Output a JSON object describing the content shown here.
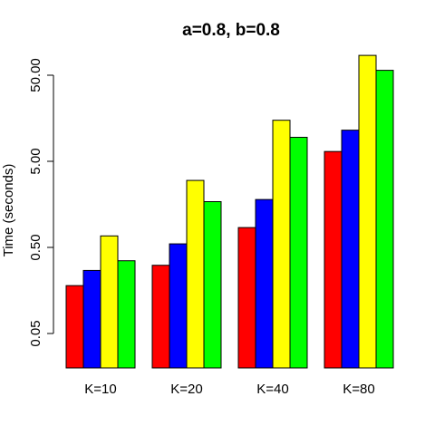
{
  "chart_data": {
    "type": "bar",
    "title": "a=0.8, b=0.8",
    "xlabel": "",
    "ylabel": "Time (seconds)",
    "y_scale": "log",
    "ylim": [
      0.016,
      100
    ],
    "y_ticks": [
      {
        "value": 0.05,
        "label": "0.05"
      },
      {
        "value": 0.5,
        "label": "0.50"
      },
      {
        "value": 5,
        "label": "5.00"
      },
      {
        "value": 50,
        "label": "50.00"
      }
    ],
    "categories": [
      "K=10",
      "K=20",
      "K=40",
      "K=80"
    ],
    "series": [
      {
        "color": "#ff0000",
        "values": [
          0.18,
          0.31,
          0.85,
          6.5
        ]
      },
      {
        "color": "#0000ff",
        "values": [
          0.27,
          0.55,
          1.8,
          11.5
        ]
      },
      {
        "color": "#ffff00",
        "values": [
          0.68,
          3.0,
          15.0,
          85.0
        ]
      },
      {
        "color": "#00ff00",
        "values": [
          0.35,
          1.7,
          9.5,
          57.0
        ]
      }
    ],
    "grid": false,
    "legend": "none"
  }
}
